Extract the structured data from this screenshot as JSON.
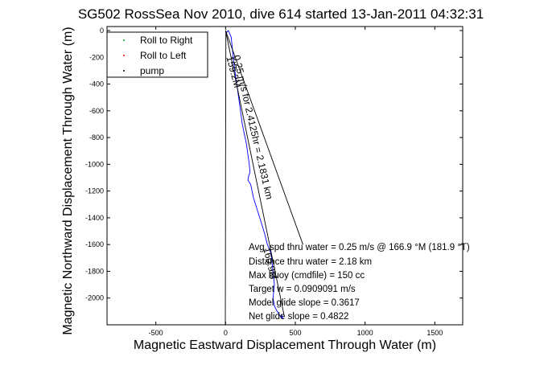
{
  "chart_data": {
    "type": "line",
    "title": "SG502 RossSea Nov 2010, dive 614 started 13-Jan-2011 04:32:31",
    "xlabel": "Magnetic Eastward Displacement Through Water (m)",
    "ylabel": "Magnetic Northward Displacement Through Water (m)",
    "xlim": [
      -850,
      1700
    ],
    "ylim": [
      -2200,
      30
    ],
    "xticks": [
      -500,
      0,
      500,
      1000,
      1500
    ],
    "yticks": [
      0,
      -200,
      -400,
      -600,
      -800,
      -1000,
      -1200,
      -1400,
      -1600,
      -1800,
      -2000
    ],
    "grid": false,
    "legend": {
      "position": "top-left",
      "entries": [
        {
          "label": "Roll to Right",
          "color": "#00aa00",
          "marker": "dot"
        },
        {
          "label": "Roll to Left",
          "color": "#ff0000",
          "marker": "dot"
        },
        {
          "label": "pump",
          "color": "#000000",
          "marker": "dot"
        }
      ]
    },
    "series": [
      {
        "color": "#0000ff",
        "x": [
          0,
          5,
          10,
          20,
          40,
          50,
          60,
          80,
          100,
          120,
          150,
          170,
          175,
          165,
          160,
          180,
          200,
          230,
          260,
          280,
          300,
          320,
          330,
          340,
          350,
          345,
          340,
          350,
          370,
          395,
          410,
          400
        ],
        "y": [
          0,
          -20,
          -10,
          0,
          -50,
          -150,
          -250,
          -400,
          -550,
          -700,
          -850,
          -1000,
          -1060,
          -1090,
          -1120,
          -1150,
          -1250,
          -1350,
          -1450,
          -1520,
          -1600,
          -1650,
          -1700,
          -1800,
          -1900,
          -1950,
          -2000,
          -2060,
          -2100,
          -2140,
          -2150,
          -2120
        ]
      },
      {
        "color": "#000000",
        "x": [
          0,
          420
        ],
        "y": [
          0,
          -2130
        ]
      },
      {
        "color": "#000000",
        "x": [
          0,
          555
        ],
        "y": [
          0,
          -1600
        ]
      },
      {
        "color": "#000000",
        "x": [
          2,
          1,
          0,
          -1,
          -2
        ],
        "y": [
          0,
          -500,
          -1000,
          -1600,
          -2200
        ]
      }
    ],
    "curve_labels": [
      {
        "text": "0.25 m/s for 2.4125hr = 2.1831 km",
        "x": 55,
        "y": -190,
        "rotate": 77
      },
      {
        "text": "159.2M",
        "x": 5,
        "y": -200,
        "rotate": 75
      },
      {
        "text": "160.9M",
        "x": 270,
        "y": -1630,
        "rotate": 76
      }
    ],
    "annotations": [
      "Avg. spd thru water = 0.25 m/s @ 166.9    °M (181.9 °T)",
      "Distance thru water = 2.18 km",
      "Max buoy (cmdfile) = 150 cc",
      "Target w = 0.0909091 m/s",
      "Model glide slope = 0.3617",
      "Net glide slope = 0.4822"
    ]
  }
}
